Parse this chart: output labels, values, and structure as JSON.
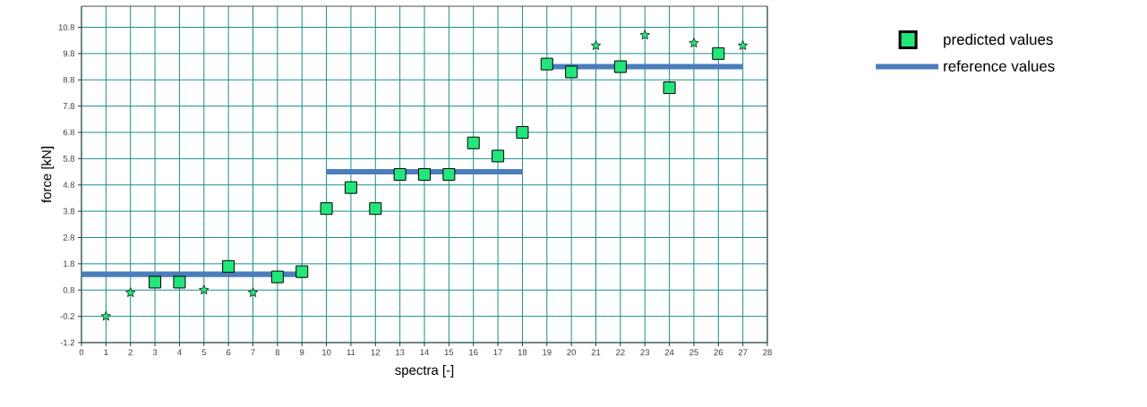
{
  "chart_data": {
    "type": "scatter",
    "xlabel": "spectra [-]",
    "ylabel": "force [kN]",
    "xlim": [
      0,
      28
    ],
    "ylim": [
      -1.2,
      11.6
    ],
    "xticks": [
      0,
      1,
      2,
      3,
      4,
      5,
      6,
      7,
      8,
      9,
      10,
      11,
      12,
      13,
      14,
      15,
      16,
      17,
      18,
      19,
      20,
      21,
      22,
      23,
      24,
      25,
      26,
      27,
      28
    ],
    "yticks": [
      -1.2,
      -0.2,
      0.8,
      1.8,
      2.8,
      3.8,
      4.8,
      5.8,
      6.8,
      7.8,
      8.8,
      9.8,
      10.8
    ],
    "grid": true,
    "legend": "right",
    "series": [
      {
        "name": "predicted values",
        "marker": "square",
        "color": "#22e67a",
        "x": [
          3,
          4,
          6,
          8,
          9,
          10,
          11,
          12,
          13,
          14,
          15,
          16,
          17,
          18,
          19,
          20,
          22,
          24,
          26
        ],
        "values": [
          1.1,
          1.1,
          1.7,
          1.3,
          1.5,
          3.9,
          4.7,
          3.9,
          5.2,
          5.2,
          5.2,
          6.4,
          5.9,
          6.8,
          9.4,
          9.1,
          9.3,
          8.5,
          9.8
        ]
      },
      {
        "marker": "star",
        "color": "#22e67a",
        "x": [
          1,
          2,
          5,
          7,
          21,
          23,
          25,
          27
        ],
        "values": [
          -0.2,
          0.7,
          0.8,
          0.7,
          10.1,
          10.5,
          10.2,
          10.1
        ]
      },
      {
        "name": "reference values",
        "type": "line",
        "color": "#4a7ebb",
        "x": [
          0,
          9
        ],
        "values": [
          1.4,
          1.4
        ]
      },
      {
        "type": "line",
        "color": "#4a7ebb",
        "x": [
          10,
          18
        ],
        "values": [
          5.3,
          5.3
        ]
      },
      {
        "type": "line",
        "color": "#4a7ebb",
        "x": [
          19,
          27
        ],
        "values": [
          9.3,
          9.3
        ]
      }
    ]
  }
}
